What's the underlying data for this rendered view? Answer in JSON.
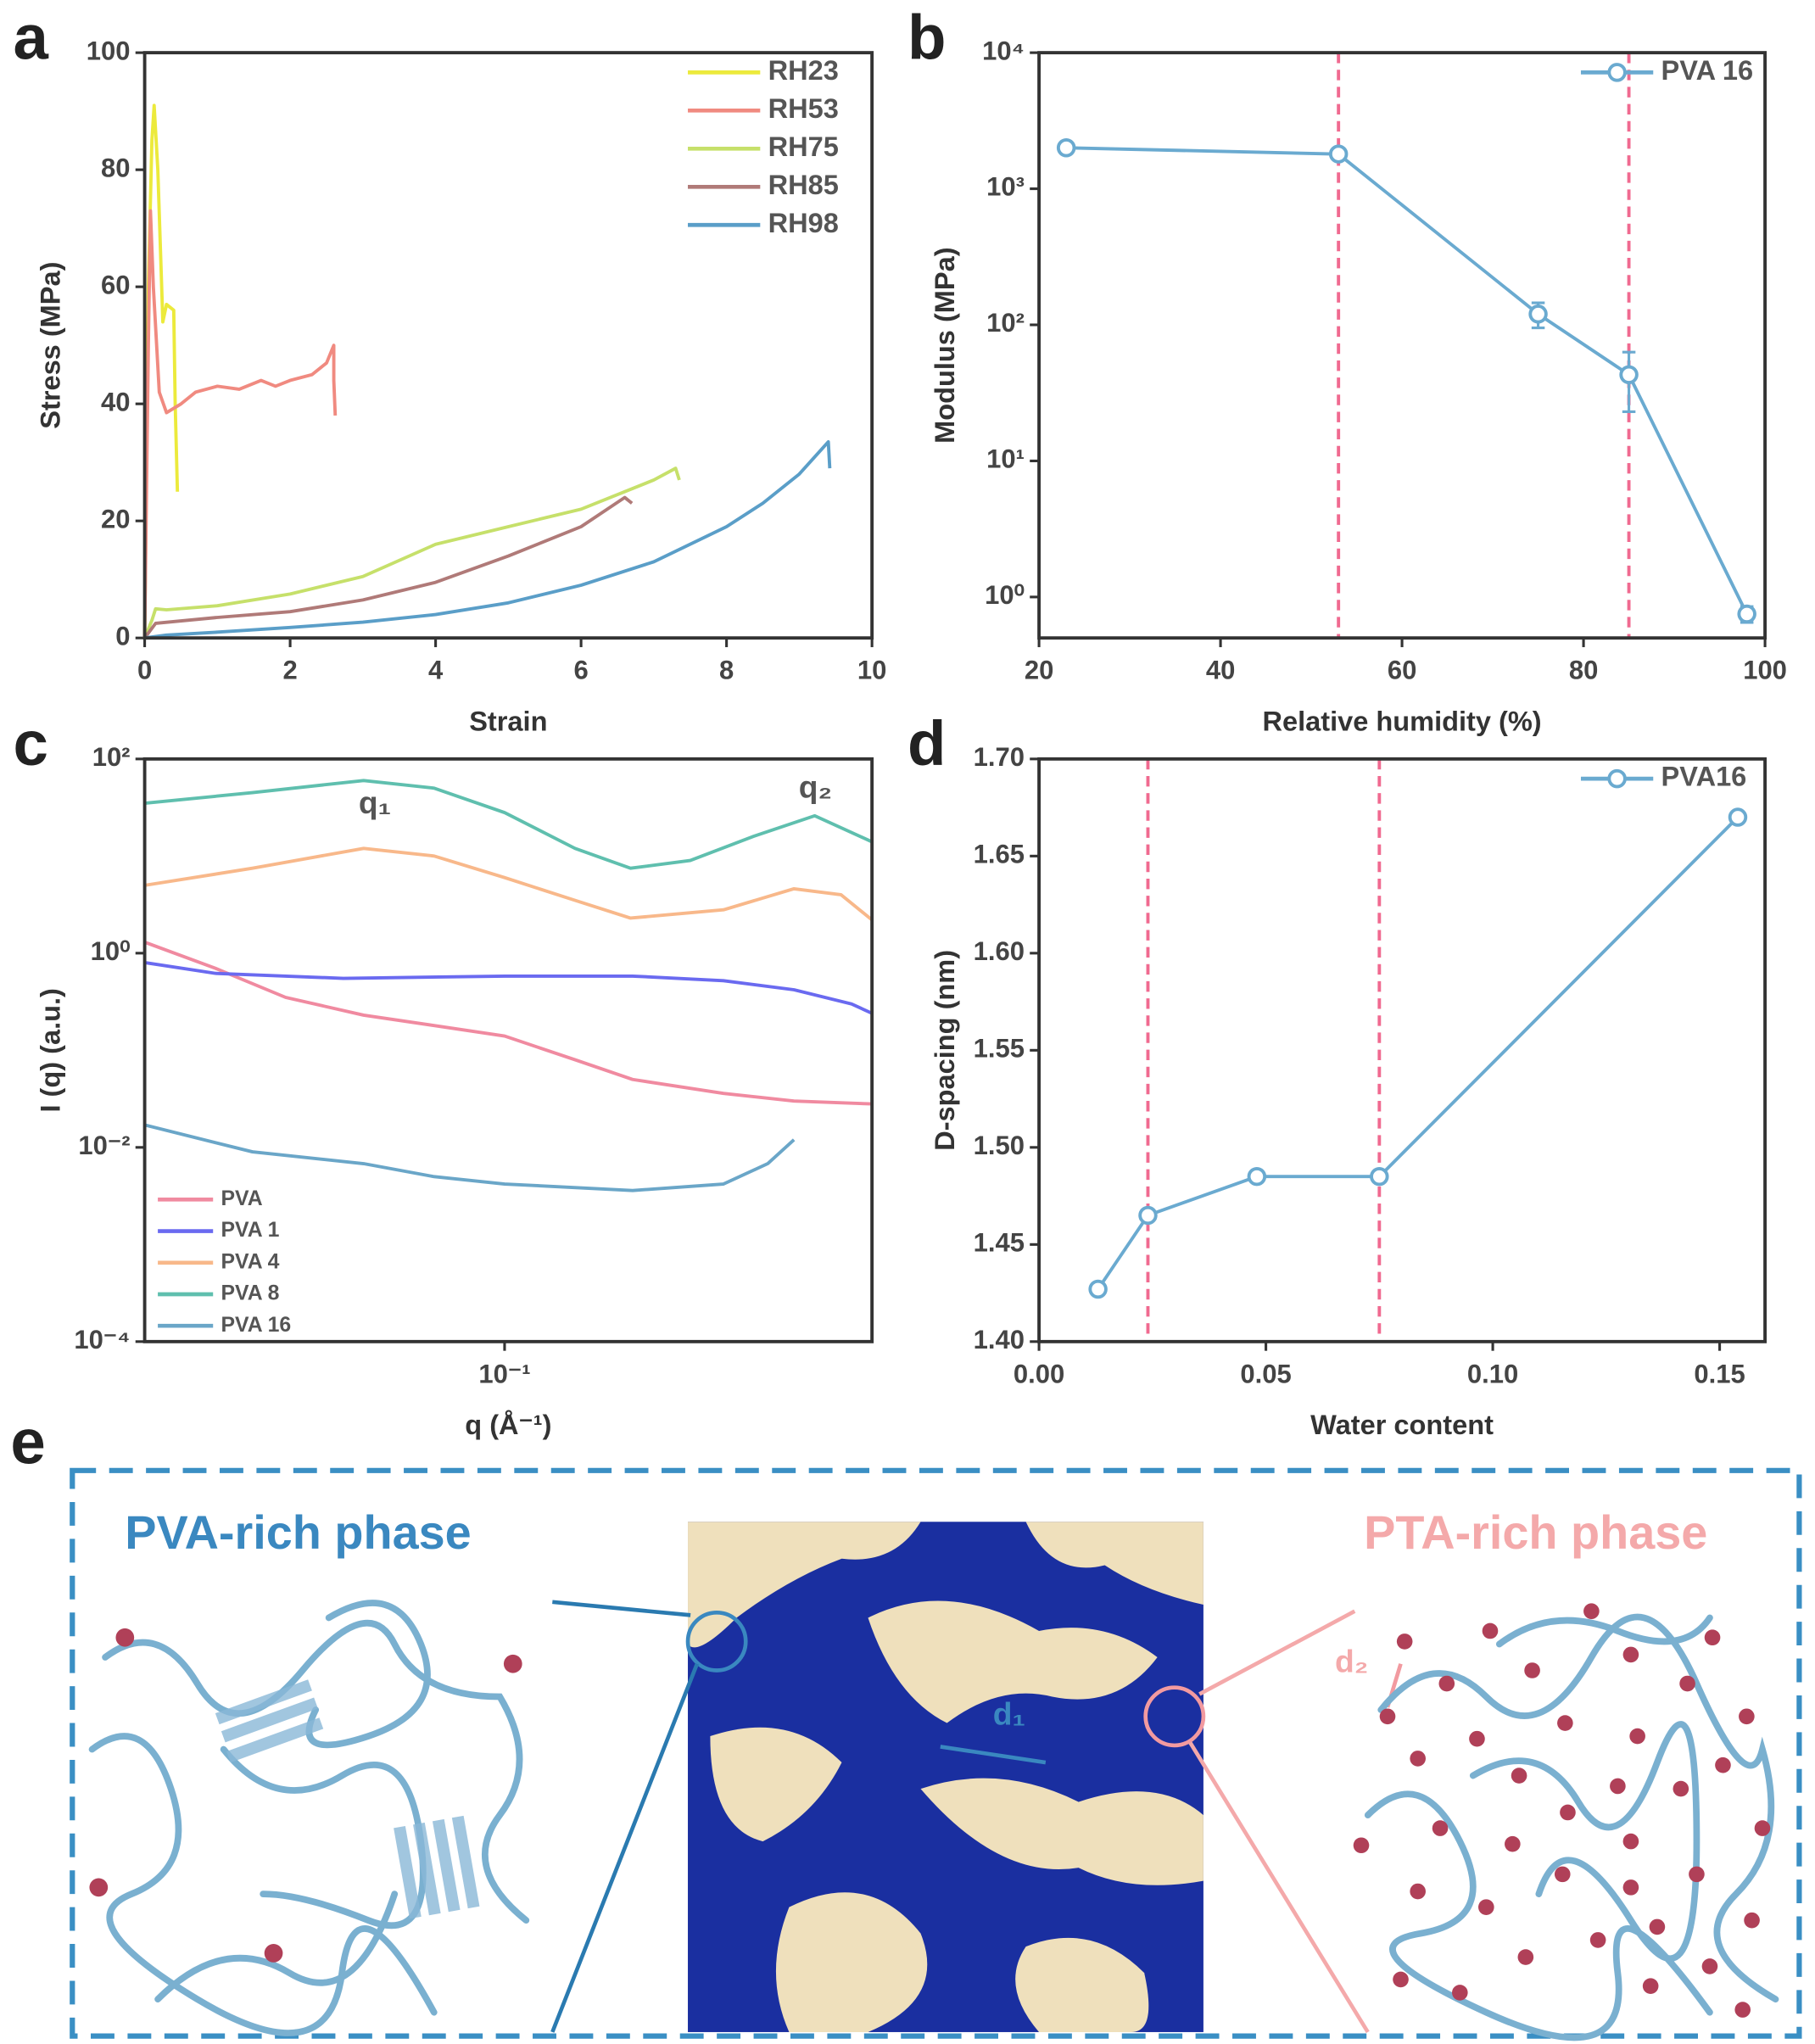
{
  "chart_data": [
    {
      "type": "line",
      "panel": "a",
      "xlabel": "Strain",
      "ylabel": "Stress (MPa)",
      "xlim": [
        0,
        10
      ],
      "xticks": [
        0,
        2,
        4,
        6,
        8,
        10
      ],
      "ylim": [
        0,
        100
      ],
      "yticks": [
        0,
        20,
        40,
        60,
        80,
        100
      ],
      "legend": "upper right",
      "markers": false,
      "series": [
        {
          "name": "RH23",
          "color": "#ecea3c",
          "x": [
            0,
            0.05,
            0.1,
            0.13,
            0.18,
            0.22,
            0.25,
            0.3,
            0.4,
            0.42,
            0.45
          ],
          "values": [
            0,
            60,
            85,
            91,
            80,
            65,
            54,
            57,
            56,
            40,
            25
          ]
        },
        {
          "name": "RH53",
          "color": "#f08a80",
          "x": [
            0,
            0.05,
            0.08,
            0.12,
            0.2,
            0.3,
            0.5,
            0.7,
            1.0,
            1.3,
            1.6,
            1.8,
            2.0,
            2.3,
            2.5,
            2.6,
            2.6,
            2.62
          ],
          "values": [
            0,
            50,
            73,
            60,
            42,
            38.5,
            40,
            42,
            43,
            42.5,
            44,
            43,
            44,
            45,
            47,
            50,
            44,
            38
          ]
        },
        {
          "name": "RH75",
          "color": "#c6e06a",
          "x": [
            0,
            0.1,
            0.15,
            0.3,
            1,
            2,
            3,
            4,
            5,
            6,
            7,
            7.3,
            7.35
          ],
          "values": [
            0,
            3,
            5,
            4.8,
            5.5,
            7.5,
            10.5,
            16,
            19,
            22,
            27,
            29,
            27
          ]
        },
        {
          "name": "RH85",
          "color": "#b07a78",
          "x": [
            0,
            0.15,
            1,
            2,
            3,
            4,
            5,
            6,
            6.6,
            6.7
          ],
          "values": [
            0,
            2.5,
            3.5,
            4.5,
            6.5,
            9.5,
            14,
            19,
            24,
            23
          ]
        },
        {
          "name": "RH98",
          "color": "#5a9ec8",
          "x": [
            0,
            0.3,
            1,
            2,
            3,
            4,
            5,
            6,
            7,
            8,
            8.5,
            9,
            9.4,
            9.42
          ],
          "values": [
            0,
            0.5,
            1,
            1.8,
            2.7,
            4,
            6,
            9,
            13,
            19,
            23,
            28,
            33.5,
            29
          ]
        }
      ]
    },
    {
      "type": "line",
      "panel": "b",
      "xlabel": "Relative humidity (%)",
      "ylabel": "Modulus (MPa)",
      "xlim": [
        20,
        100
      ],
      "xticks": [
        20,
        40,
        60,
        80,
        100
      ],
      "yscale": "log",
      "ylim": [
        0.5,
        10000
      ],
      "yticks": [
        {
          "value": 1,
          "label": "10⁰"
        },
        {
          "value": 10,
          "label": "10¹"
        },
        {
          "value": 100,
          "label": "10²"
        },
        {
          "value": 1000,
          "label": "10³"
        },
        {
          "value": 10000,
          "label": "10⁴"
        }
      ],
      "vlines": [
        53,
        85
      ],
      "vline_color": "#f06a90",
      "legend": "upper right",
      "markers": true,
      "series": [
        {
          "name": "PVA 16",
          "color": "#6aaad0",
          "x": [
            23,
            53,
            75,
            85,
            98
          ],
          "values": [
            2000,
            1800,
            120,
            43,
            0.75
          ],
          "errors": [
            150,
            150,
            25,
            20,
            0.1
          ]
        }
      ]
    },
    {
      "type": "line",
      "panel": "c",
      "xlabel": "q (Å⁻¹)",
      "ylabel": "I (q) (a.u.)",
      "xscale": "log",
      "xlim": [
        0.032,
        0.32
      ],
      "xticks": [
        {
          "value": 0.1,
          "label": "10⁻¹"
        }
      ],
      "yscale": "log",
      "ylim": [
        0.0001,
        100
      ],
      "yticks": [
        {
          "value": 0.0001,
          "label": "10⁻⁴"
        },
        {
          "value": 0.01,
          "label": "10⁻²"
        },
        {
          "value": 1,
          "label": "10⁰"
        },
        {
          "value": 100,
          "label": "10²"
        }
      ],
      "annotations": [
        "q₁",
        "q₂"
      ],
      "legend": "lower left",
      "markers": false,
      "series": [
        {
          "name": "PVA",
          "color": "#f08aa0",
          "x": [
            0.032,
            0.04,
            0.05,
            0.064,
            0.08,
            0.1,
            0.125,
            0.15,
            0.2,
            0.25,
            0.32
          ],
          "values": [
            1.3,
            0.7,
            0.35,
            0.23,
            0.18,
            0.14,
            0.08,
            0.05,
            0.036,
            0.03,
            0.028
          ]
        },
        {
          "name": "PVA 1",
          "color": "#6a6af0",
          "x": [
            0.032,
            0.04,
            0.06,
            0.1,
            0.15,
            0.2,
            0.25,
            0.3,
            0.32
          ],
          "values": [
            0.8,
            0.62,
            0.55,
            0.58,
            0.58,
            0.52,
            0.42,
            0.3,
            0.24
          ]
        },
        {
          "name": "PVA 4",
          "color": "#f8b88a",
          "x": [
            0.032,
            0.045,
            0.064,
            0.08,
            0.1,
            0.125,
            0.149,
            0.2,
            0.25,
            0.29,
            0.32
          ],
          "values": [
            5,
            7.5,
            12,
            10,
            6,
            3.5,
            2.3,
            2.8,
            4.6,
            4,
            2.2
          ]
        },
        {
          "name": "PVA 8",
          "color": "#5fbfae",
          "x": [
            0.032,
            0.045,
            0.064,
            0.08,
            0.1,
            0.125,
            0.149,
            0.18,
            0.22,
            0.267,
            0.32
          ],
          "values": [
            35,
            45,
            60,
            50,
            28,
            12,
            7.5,
            9,
            16,
            26,
            14
          ]
        },
        {
          "name": "PVA 16",
          "color": "#6aa6c8",
          "x": [
            0.032,
            0.045,
            0.064,
            0.08,
            0.1,
            0.15,
            0.2,
            0.23,
            0.25
          ],
          "values": [
            0.017,
            0.009,
            0.0068,
            0.005,
            0.0042,
            0.0036,
            0.0042,
            0.0068,
            0.012
          ]
        }
      ]
    },
    {
      "type": "line",
      "panel": "d",
      "xlabel": "Water content",
      "ylabel": "D-spacing (nm)",
      "xlim": [
        0,
        0.16
      ],
      "xticks": [
        {
          "value": 0,
          "label": "0.00"
        },
        {
          "value": 0.05,
          "label": "0.05"
        },
        {
          "value": 0.1,
          "label": "0.10"
        },
        {
          "value": 0.15,
          "label": "0.15"
        }
      ],
      "ylim": [
        1.4,
        1.7
      ],
      "yticks": [
        {
          "value": 1.4,
          "label": "1.40"
        },
        1.45,
        {
          "value": 1.5,
          "label": "1.50"
        },
        1.55,
        {
          "value": 1.6,
          "label": "1.60"
        },
        1.65,
        {
          "value": 1.7,
          "label": "1.70"
        }
      ],
      "vlines": [
        0.024,
        0.075
      ],
      "vline_color": "#f06a90",
      "legend": "upper right",
      "markers": true,
      "series": [
        {
          "name": "PVA16",
          "color": "#6aaad0",
          "x": [
            0.013,
            0.024,
            0.048,
            0.075,
            0.154
          ],
          "values": [
            1.427,
            1.465,
            1.485,
            1.485,
            1.67
          ]
        }
      ]
    }
  ],
  "diagram": {
    "label": "e",
    "left_title": "PVA-rich phase",
    "right_title": "PTA-rich phase",
    "d1": "d₁",
    "d2": "d₂"
  }
}
